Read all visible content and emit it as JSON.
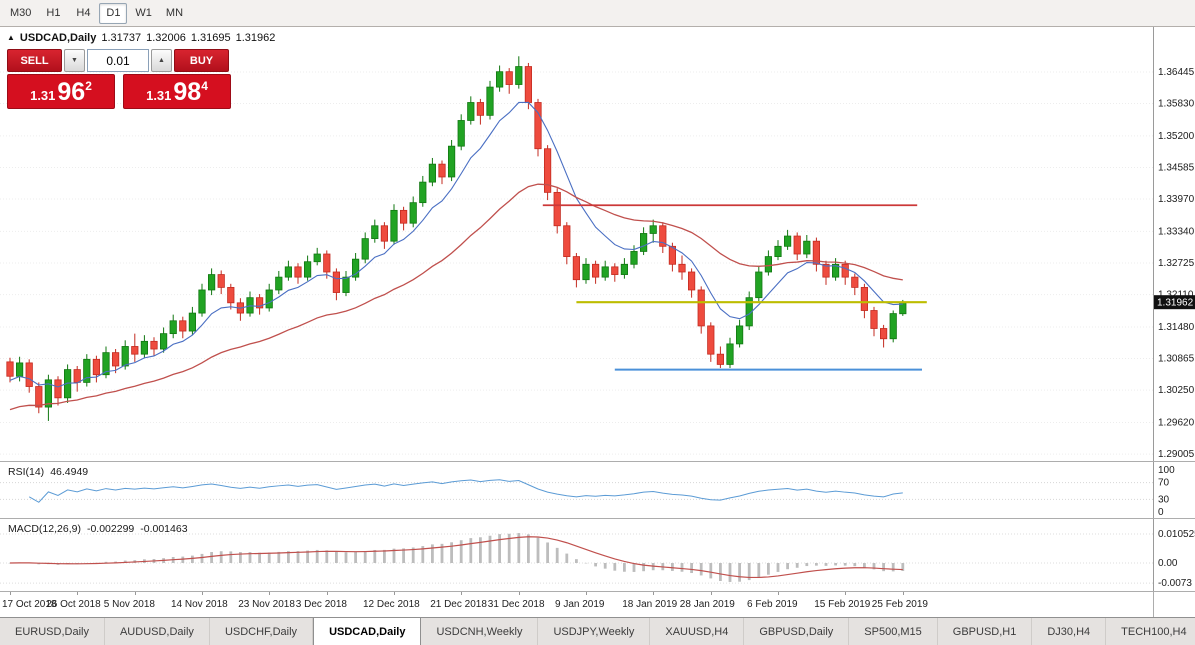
{
  "toolbar": {
    "timeframes": [
      "M30",
      "H1",
      "H4",
      "D1",
      "W1",
      "MN"
    ],
    "active": "D1"
  },
  "header": {
    "arrow_icon": "▲",
    "symbol": "USDCAD,Daily",
    "open": "1.31737",
    "high": "1.32006",
    "low": "1.31695",
    "close": "1.31962"
  },
  "trade_panel": {
    "sell_label": "SELL",
    "buy_label": "BUY",
    "volume": "0.01",
    "spinner_down_icon": "▼",
    "spinner_up_icon": "▲",
    "sell_price": {
      "prefix": "1.31",
      "big": "96",
      "sup": "2"
    },
    "buy_price": {
      "prefix": "1.31",
      "big": "98",
      "sup": "4"
    }
  },
  "indicators": {
    "rsi_label": "RSI(14)",
    "rsi_value": "46.4949",
    "macd_label": "MACD(12,26,9)",
    "macd_value": "-0.002299",
    "macd_signal_value": "-0.001463"
  },
  "chart_data": {
    "type": "candlestick",
    "symbol": "USDCAD",
    "timeframe": "Daily",
    "price_range": {
      "top": 1.3732,
      "bottom": 1.2887
    },
    "price_axis": [
      "1.36445",
      "1.35830",
      "1.35200",
      "1.34585",
      "1.33970",
      "1.33340",
      "1.32725",
      "1.32110",
      "1.31480",
      "1.30865",
      "1.30250",
      "1.29620",
      "1.29005"
    ],
    "current_price": "1.31962",
    "candle_colors": {
      "up_fill": "#21a323",
      "up_stroke": "#117711",
      "down_fill": "#ee4b3e",
      "down_stroke": "#c32b20"
    },
    "overlays": {
      "ma_fast": {
        "period": 8,
        "color": "#4a6fc3"
      },
      "ma_slow": {
        "period": 30,
        "color": "#c0504d"
      }
    },
    "hlines": [
      {
        "name": "resistance-line",
        "price": 1.3385,
        "from_bar": 55.5,
        "to_bar": 94.5,
        "color": "#cc3838",
        "width": 1.8
      },
      {
        "name": "pivot-line",
        "price": 1.31962,
        "from_bar": 59,
        "to_bar": 95.5,
        "color": "#bdbd00",
        "width": 2.2
      },
      {
        "name": "support-line",
        "price": 1.3065,
        "from_bar": 63,
        "to_bar": 95,
        "color": "#4a90d9",
        "width": 2
      }
    ],
    "rsi": {
      "period": 14,
      "color": "#5b9bd5",
      "levels": [
        "100",
        "70",
        "30",
        "0"
      ],
      "range": [
        0,
        100
      ]
    },
    "macd": {
      "fast": 12,
      "slow": 26,
      "signal": 9,
      "hist_color": "#bdbdbd",
      "signal_color": "#c0504d",
      "levels": [
        "0.010525",
        "0.00",
        "-0.0073"
      ]
    },
    "date_ticks": [
      {
        "bar": 0,
        "label": "17 Oct 2018"
      },
      {
        "bar": 7,
        "label": "26 Oct 2018"
      },
      {
        "bar": 13,
        "label": "5 Nov 2018"
      },
      {
        "bar": 20,
        "label": "14 Nov 2018"
      },
      {
        "bar": 27,
        "label": "23 Nov 2018"
      },
      {
        "bar": 33,
        "label": "3 Dec 2018"
      },
      {
        "bar": 40,
        "label": "12 Dec 2018"
      },
      {
        "bar": 47,
        "label": "21 Dec 2018"
      },
      {
        "bar": 53,
        "label": "31 Dec 2018"
      },
      {
        "bar": 60,
        "label": "9 Jan 2019"
      },
      {
        "bar": 67,
        "label": "18 Jan 2019"
      },
      {
        "bar": 73,
        "label": "28 Jan 2019"
      },
      {
        "bar": 80,
        "label": "6 Feb 2019"
      },
      {
        "bar": 87,
        "label": "15 Feb 2019"
      },
      {
        "bar": 93,
        "label": "25 Feb 2019"
      }
    ],
    "ohlc": [
      [
        1.308,
        1.3088,
        1.304,
        1.3052
      ],
      [
        1.3052,
        1.309,
        1.3042,
        1.3078
      ],
      [
        1.3078,
        1.3085,
        1.302,
        1.3032
      ],
      [
        1.3032,
        1.304,
        1.298,
        1.2992
      ],
      [
        1.2992,
        1.3055,
        1.2965,
        1.3045
      ],
      [
        1.3045,
        1.3052,
        1.2995,
        1.301
      ],
      [
        1.301,
        1.3075,
        1.3,
        1.3065
      ],
      [
        1.3065,
        1.3072,
        1.3022,
        1.304
      ],
      [
        1.304,
        1.3095,
        1.3032,
        1.3085
      ],
      [
        1.3085,
        1.3092,
        1.304,
        1.3055
      ],
      [
        1.3055,
        1.311,
        1.3048,
        1.3098
      ],
      [
        1.3098,
        1.3105,
        1.3058,
        1.3072
      ],
      [
        1.3072,
        1.3122,
        1.3065,
        1.311
      ],
      [
        1.311,
        1.3135,
        1.308,
        1.3095
      ],
      [
        1.3095,
        1.3132,
        1.3088,
        1.312
      ],
      [
        1.312,
        1.3128,
        1.3092,
        1.3105
      ],
      [
        1.3105,
        1.3147,
        1.3098,
        1.3135
      ],
      [
        1.3135,
        1.3172,
        1.3126,
        1.316
      ],
      [
        1.316,
        1.3168,
        1.3126,
        1.314
      ],
      [
        1.314,
        1.3187,
        1.3132,
        1.3175
      ],
      [
        1.3175,
        1.3232,
        1.3168,
        1.322
      ],
      [
        1.322,
        1.3262,
        1.321,
        1.325
      ],
      [
        1.325,
        1.3258,
        1.3212,
        1.3225
      ],
      [
        1.3225,
        1.3232,
        1.3182,
        1.3195
      ],
      [
        1.3195,
        1.3204,
        1.316,
        1.3175
      ],
      [
        1.3175,
        1.3217,
        1.3168,
        1.3205
      ],
      [
        1.3205,
        1.3212,
        1.3172,
        1.3185
      ],
      [
        1.3185,
        1.3232,
        1.3178,
        1.322
      ],
      [
        1.322,
        1.3257,
        1.3212,
        1.3245
      ],
      [
        1.3245,
        1.3277,
        1.3238,
        1.3265
      ],
      [
        1.3265,
        1.3272,
        1.3232,
        1.3245
      ],
      [
        1.3245,
        1.3287,
        1.3238,
        1.3275
      ],
      [
        1.3275,
        1.3302,
        1.3268,
        1.329
      ],
      [
        1.329,
        1.3297,
        1.3242,
        1.3255
      ],
      [
        1.3255,
        1.3262,
        1.32,
        1.3215
      ],
      [
        1.3215,
        1.3257,
        1.3208,
        1.3245
      ],
      [
        1.3245,
        1.3292,
        1.3238,
        1.328
      ],
      [
        1.328,
        1.3332,
        1.3272,
        1.332
      ],
      [
        1.332,
        1.3357,
        1.3312,
        1.3345
      ],
      [
        1.3345,
        1.3352,
        1.33,
        1.3315
      ],
      [
        1.3315,
        1.3387,
        1.3308,
        1.3375
      ],
      [
        1.3375,
        1.3382,
        1.3336,
        1.335
      ],
      [
        1.335,
        1.3402,
        1.3342,
        1.339
      ],
      [
        1.339,
        1.3442,
        1.3382,
        1.343
      ],
      [
        1.343,
        1.3477,
        1.3422,
        1.3465
      ],
      [
        1.3465,
        1.3472,
        1.3426,
        1.344
      ],
      [
        1.344,
        1.3512,
        1.3432,
        1.35
      ],
      [
        1.35,
        1.3562,
        1.3492,
        1.355
      ],
      [
        1.355,
        1.3597,
        1.3542,
        1.3585
      ],
      [
        1.3585,
        1.3592,
        1.3542,
        1.356
      ],
      [
        1.356,
        1.3627,
        1.3552,
        1.3615
      ],
      [
        1.3615,
        1.3657,
        1.3606,
        1.3645
      ],
      [
        1.3645,
        1.3652,
        1.3602,
        1.362
      ],
      [
        1.362,
        1.3675,
        1.3612,
        1.3655
      ],
      [
        1.3655,
        1.3662,
        1.3572,
        1.3585
      ],
      [
        1.3585,
        1.3592,
        1.348,
        1.3495
      ],
      [
        1.3495,
        1.3502,
        1.3395,
        1.341
      ],
      [
        1.341,
        1.3418,
        1.333,
        1.3345
      ],
      [
        1.3345,
        1.3352,
        1.327,
        1.3285
      ],
      [
        1.3285,
        1.3292,
        1.3225,
        1.324
      ],
      [
        1.324,
        1.3282,
        1.3232,
        1.327
      ],
      [
        1.327,
        1.3277,
        1.3232,
        1.3245
      ],
      [
        1.3245,
        1.3277,
        1.3238,
        1.3265
      ],
      [
        1.3265,
        1.3272,
        1.3236,
        1.325
      ],
      [
        1.325,
        1.3282,
        1.3242,
        1.327
      ],
      [
        1.327,
        1.3307,
        1.3262,
        1.3295
      ],
      [
        1.3295,
        1.3342,
        1.3288,
        1.333
      ],
      [
        1.333,
        1.3357,
        1.3312,
        1.3345
      ],
      [
        1.3345,
        1.3352,
        1.3292,
        1.3305
      ],
      [
        1.3305,
        1.3312,
        1.3256,
        1.327
      ],
      [
        1.327,
        1.3287,
        1.324,
        1.3255
      ],
      [
        1.3255,
        1.3262,
        1.3205,
        1.322
      ],
      [
        1.322,
        1.3227,
        1.3135,
        1.315
      ],
      [
        1.315,
        1.3157,
        1.308,
        1.3095
      ],
      [
        1.3095,
        1.311,
        1.3068,
        1.3075
      ],
      [
        1.3075,
        1.3127,
        1.3068,
        1.3115
      ],
      [
        1.3115,
        1.3162,
        1.3108,
        1.315
      ],
      [
        1.315,
        1.3217,
        1.3142,
        1.3205
      ],
      [
        1.3205,
        1.3267,
        1.3198,
        1.3255
      ],
      [
        1.3255,
        1.3297,
        1.3248,
        1.3285
      ],
      [
        1.3285,
        1.3317,
        1.3278,
        1.3305
      ],
      [
        1.3305,
        1.3337,
        1.3298,
        1.3325
      ],
      [
        1.3325,
        1.3332,
        1.3278,
        1.329
      ],
      [
        1.329,
        1.3327,
        1.3282,
        1.3315
      ],
      [
        1.3315,
        1.3322,
        1.3256,
        1.327
      ],
      [
        1.327,
        1.3277,
        1.323,
        1.3245
      ],
      [
        1.3245,
        1.3282,
        1.3238,
        1.327
      ],
      [
        1.327,
        1.3277,
        1.323,
        1.3245
      ],
      [
        1.3245,
        1.3252,
        1.321,
        1.3225
      ],
      [
        1.3225,
        1.3232,
        1.3165,
        1.318
      ],
      [
        1.318,
        1.3187,
        1.313,
        1.3145
      ],
      [
        1.3145,
        1.3152,
        1.3108,
        1.3125
      ],
      [
        1.3125,
        1.318,
        1.3118,
        1.3174
      ],
      [
        1.31737,
        1.32006,
        1.31695,
        1.31962
      ]
    ]
  },
  "tabs": {
    "items": [
      "EURUSD,Daily",
      "AUDUSD,Daily",
      "USDCHF,Daily",
      "USDCAD,Daily",
      "USDCNH,Weekly",
      "USDJPY,Weekly",
      "XAUUSD,H4",
      "GBPUSD,Daily",
      "SP500,M15",
      "GBPUSD,H1",
      "DJ30,H4",
      "TECH100,H4"
    ],
    "active": "USDCAD,Daily"
  }
}
